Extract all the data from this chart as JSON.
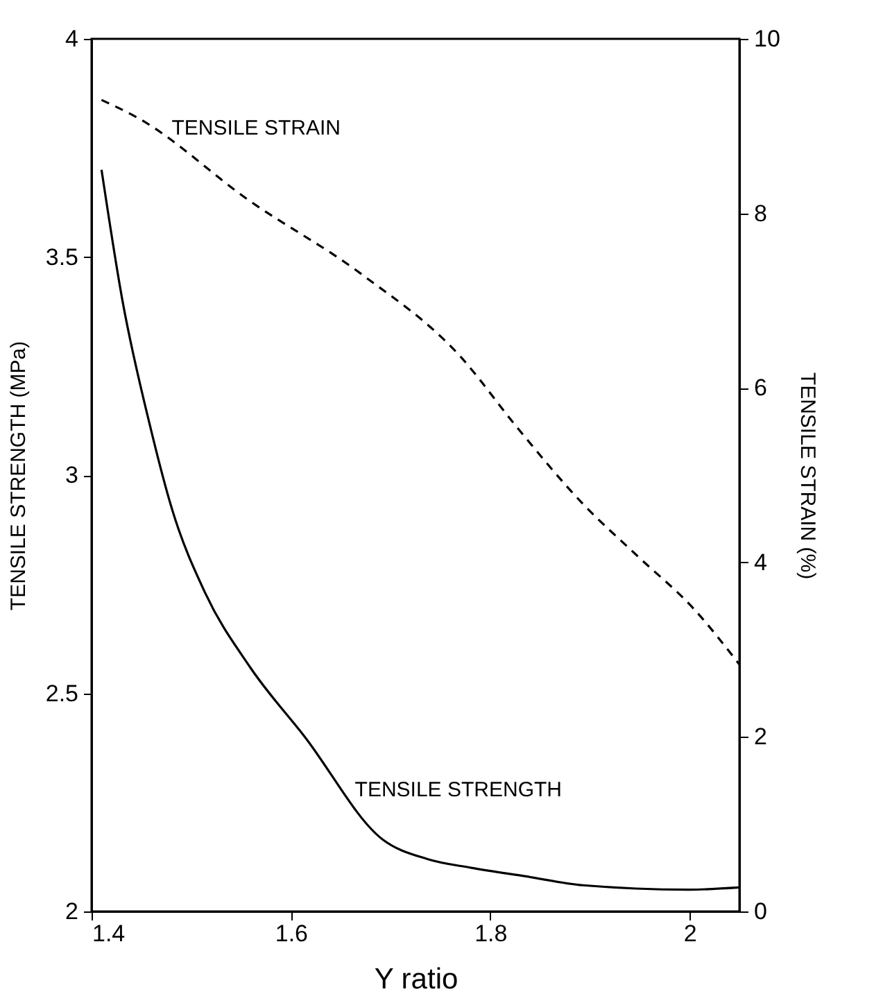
{
  "chart_data": {
    "type": "line",
    "xlabel": "Y ratio",
    "ylabel": "TENSILE STRENGTH (MPa)",
    "y2label": "TENSILE STRAIN (%)",
    "xlim": [
      1.4,
      2.05
    ],
    "xticks": [
      1.4,
      1.6,
      1.8,
      2
    ],
    "ylim": [
      2,
      4
    ],
    "yticks": [
      2,
      2.5,
      3,
      3.5,
      4
    ],
    "y2lim": [
      0,
      10
    ],
    "y2ticks": [
      0,
      2,
      4,
      6,
      8,
      10
    ],
    "marker": "none",
    "series": [
      {
        "name": "TENSILE STRAIN",
        "color": "#000000",
        "axis": "y2",
        "line_style": "dashed",
        "x": [
          1.41,
          1.447,
          1.559,
          1.67,
          1.77,
          1.826,
          1.893,
          1.948,
          2.004,
          2.05
        ],
        "values": [
          9.3,
          9.09,
          8.14,
          7.31,
          6.36,
          5.56,
          4.67,
          4.07,
          3.47,
          2.83
        ]
      },
      {
        "name": "TENSILE STRENGTH",
        "color": "#000000",
        "line_style": "solid",
        "x": [
          1.41,
          1.431,
          1.459,
          1.481,
          1.514,
          1.559,
          1.614,
          1.692,
          1.737,
          1.781,
          1.837,
          1.893,
          1.999,
          2.05
        ],
        "values": [
          3.7,
          3.4,
          3.11,
          2.92,
          2.73,
          2.56,
          2.4,
          2.165,
          2.12,
          2.1,
          2.08,
          2.06,
          2.05,
          2.055
        ]
      }
    ]
  }
}
